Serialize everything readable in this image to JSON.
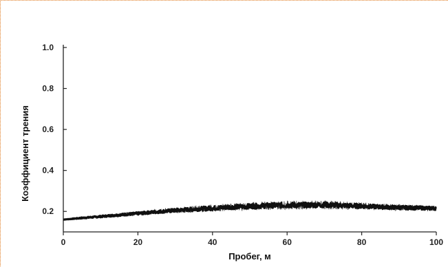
{
  "chart_data": {
    "type": "line",
    "xlabel": "Пробег, м",
    "ylabel": "Коэффициент трения",
    "xlim": [
      0,
      100
    ],
    "ylim": [
      0.1,
      1.0
    ],
    "x_ticks": [
      "0",
      "20",
      "40",
      "60",
      "80",
      "100"
    ],
    "y_ticks": [
      "0.2",
      "0.4",
      "0.6",
      "0.8",
      "1.0"
    ],
    "grid": false,
    "legend": "none",
    "series": [
      {
        "color": "#111111",
        "x": [
          0,
          5,
          10,
          15,
          20,
          25,
          30,
          35,
          40,
          45,
          50,
          55,
          60,
          65,
          70,
          75,
          80,
          85,
          90,
          95,
          100
        ],
        "y": [
          0.16,
          0.168,
          0.175,
          0.183,
          0.19,
          0.198,
          0.205,
          0.211,
          0.216,
          0.221,
          0.225,
          0.229,
          0.231,
          0.231,
          0.232,
          0.229,
          0.226,
          0.222,
          0.219,
          0.217,
          0.215
        ],
        "noise": [
          0,
          0.003,
          0.004,
          0.005,
          0.006,
          0.007,
          0.008,
          0.009,
          0.01,
          0.01,
          0.011,
          0.012,
          0.012,
          0.012,
          0.012,
          0.011,
          0.01,
          0.009,
          0.009,
          0.008,
          0.008
        ]
      }
    ]
  }
}
